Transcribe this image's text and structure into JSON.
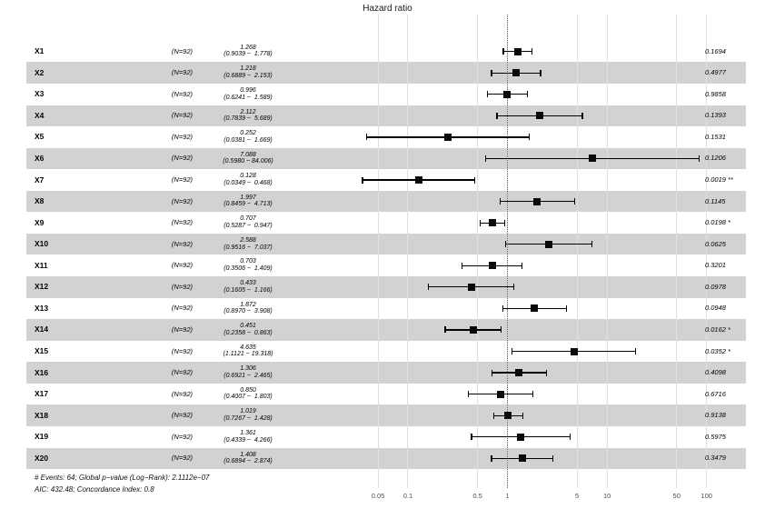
{
  "chart_data": {
    "type": "forest",
    "title": "Hazard ratio",
    "x_scale": "log10",
    "xlim": [
      0.05,
      100
    ],
    "x_tick_values": [
      0.05,
      0.1,
      0.5,
      1,
      5,
      10,
      50,
      100
    ],
    "x_tick_labels": [
      "0.05",
      "0.1",
      "0.5",
      "1",
      "5",
      "10",
      "50",
      "100"
    ],
    "reference_line": 1,
    "legend_position": "none",
    "grid": true,
    "rows": [
      {
        "label": "X1",
        "n": "(N=92)",
        "estimate": 1.268,
        "ci_low": 0.9039,
        "ci_high": 1.778,
        "estimate_text": "1.268",
        "ci_text": "(0.9039 −  1.778)",
        "p_text": "0.1694"
      },
      {
        "label": "X2",
        "n": "(N=92)",
        "estimate": 1.218,
        "ci_low": 0.6889,
        "ci_high": 2.153,
        "estimate_text": "1.218",
        "ci_text": "(0.6889 −  2.153)",
        "p_text": "0.4977"
      },
      {
        "label": "X3",
        "n": "(N=92)",
        "estimate": 0.996,
        "ci_low": 0.6241,
        "ci_high": 1.589,
        "estimate_text": "0.996",
        "ci_text": "(0.6241 −  1.589)",
        "p_text": "0.9858"
      },
      {
        "label": "X4",
        "n": "(N=92)",
        "estimate": 2.112,
        "ci_low": 0.7839,
        "ci_high": 5.689,
        "estimate_text": "2.112",
        "ci_text": "(0.7839 −  5.689)",
        "p_text": "0.1393"
      },
      {
        "label": "X5",
        "n": "(N=92)",
        "estimate": 0.252,
        "ci_low": 0.0381,
        "ci_high": 1.669,
        "estimate_text": "0.252",
        "ci_text": "(0.0381 −  1.669)",
        "p_text": "0.1531"
      },
      {
        "label": "X6",
        "n": "(N=92)",
        "estimate": 7.088,
        "ci_low": 0.598,
        "ci_high": 84.006,
        "estimate_text": "7.088",
        "ci_text": "(0.5980 − 84.006)",
        "p_text": "0.1206"
      },
      {
        "label": "X7",
        "n": "(N=92)",
        "estimate": 0.128,
        "ci_low": 0.0349,
        "ci_high": 0.468,
        "estimate_text": "0.128",
        "ci_text": "(0.0349 −  0.468)",
        "p_text": "0.0019 **"
      },
      {
        "label": "X8",
        "n": "(N=92)",
        "estimate": 1.997,
        "ci_low": 0.8459,
        "ci_high": 4.713,
        "estimate_text": "1.997",
        "ci_text": "(0.8459 −  4.713)",
        "p_text": "0.1145"
      },
      {
        "label": "X9",
        "n": "(N=92)",
        "estimate": 0.707,
        "ci_low": 0.5287,
        "ci_high": 0.947,
        "estimate_text": "0.707",
        "ci_text": "(0.5287 −  0.947)",
        "p_text": "0.0198 *"
      },
      {
        "label": "X10",
        "n": "(N=92)",
        "estimate": 2.588,
        "ci_low": 0.9516,
        "ci_high": 7.037,
        "estimate_text": "2.588",
        "ci_text": "(0.9516 −  7.037)",
        "p_text": "0.0625"
      },
      {
        "label": "X11",
        "n": "(N=92)",
        "estimate": 0.703,
        "ci_low": 0.3506,
        "ci_high": 1.409,
        "estimate_text": "0.703",
        "ci_text": "(0.3506 −  1.409)",
        "p_text": "0.3201"
      },
      {
        "label": "X12",
        "n": "(N=92)",
        "estimate": 0.433,
        "ci_low": 0.1605,
        "ci_high": 1.166,
        "estimate_text": "0.433",
        "ci_text": "(0.1605 −  1.166)",
        "p_text": "0.0978"
      },
      {
        "label": "X13",
        "n": "(N=92)",
        "estimate": 1.872,
        "ci_low": 0.897,
        "ci_high": 3.908,
        "estimate_text": "1.872",
        "ci_text": "(0.8970 −  3.908)",
        "p_text": "0.0948"
      },
      {
        "label": "X14",
        "n": "(N=92)",
        "estimate": 0.451,
        "ci_low": 0.2358,
        "ci_high": 0.863,
        "estimate_text": "0.451",
        "ci_text": "(0.2358 −  0.863)",
        "p_text": "0.0162 *"
      },
      {
        "label": "X15",
        "n": "(N=92)",
        "estimate": 4.635,
        "ci_low": 1.1121,
        "ci_high": 19.318,
        "estimate_text": "4.635",
        "ci_text": "(1.1121 − 19.318)",
        "p_text": "0.0352 *"
      },
      {
        "label": "X16",
        "n": "(N=92)",
        "estimate": 1.306,
        "ci_low": 0.6921,
        "ci_high": 2.465,
        "estimate_text": "1.306",
        "ci_text": "(0.6921 −  2.465)",
        "p_text": "0.4098"
      },
      {
        "label": "X17",
        "n": "(N=92)",
        "estimate": 0.85,
        "ci_low": 0.4007,
        "ci_high": 1.803,
        "estimate_text": "0.850",
        "ci_text": "(0.4007 −  1.803)",
        "p_text": "0.6716"
      },
      {
        "label": "X18",
        "n": "(N=92)",
        "estimate": 1.019,
        "ci_low": 0.7267,
        "ci_high": 1.428,
        "estimate_text": "1.019",
        "ci_text": "(0.7267 −  1.428)",
        "p_text": "0.9138"
      },
      {
        "label": "X19",
        "n": "(N=92)",
        "estimate": 1.361,
        "ci_low": 0.4339,
        "ci_high": 4.266,
        "estimate_text": "1.361",
        "ci_text": "(0.4339 −  4.266)",
        "p_text": "0.5975"
      },
      {
        "label": "X20",
        "n": "(N=92)",
        "estimate": 1.408,
        "ci_low": 0.6894,
        "ci_high": 2.874,
        "estimate_text": "1.408",
        "ci_text": "(0.6894 −  2.874)",
        "p_text": "0.3479"
      }
    ],
    "footnotes": [
      "# Events: 64; Global p−value (Log−Rank): 2.1112e−07",
      "AIC: 432.48; Concordance Index: 0.8"
    ],
    "colors": {
      "band": "#d2d2d2",
      "gridline": "#e0e0e0",
      "reference_line": "#666666",
      "marker": "#0a0a0a",
      "tick_text": "#4d4d4d"
    }
  }
}
